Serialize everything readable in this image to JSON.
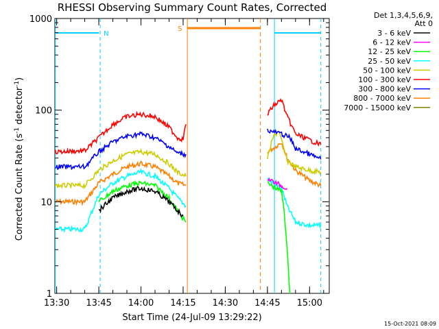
{
  "chart_data": {
    "type": "line",
    "title": "RHESSI Observing Summary Count Rates, Corrected",
    "xlabel": "Start Time (24-Jul-09 13:29:22)",
    "ylabel": "Corrected Count Rate (s",
    "ylabel_sup1": "-1",
    "ylabel_mid": " detector",
    "ylabel_sup2": "-1",
    "ylabel_end": ")",
    "y_scale": "log",
    "ylim": [
      1,
      1000
    ],
    "xlim": [
      "13:29:22",
      "15:07:00"
    ],
    "x_ticks": [
      "13:30",
      "13:45",
      "14:00",
      "14:15",
      "14:30",
      "14:45",
      "15:00"
    ],
    "y_ticks": [
      "1",
      "10",
      "100",
      "1000"
    ],
    "legend_header": [
      "Det 1,3,4,5,6,9,",
      "Att 0"
    ],
    "legend_position": "right",
    "series": [
      {
        "name": "3 - 6 keV",
        "color": "#000000",
        "segments": [
          {
            "x": [
              "13:45",
              "13:50",
              "13:55",
              "14:00",
              "14:05",
              "14:10",
              "14:13",
              "14:15"
            ],
            "y": [
              8,
              11,
              13,
              14,
              13,
              10,
              8,
              7
            ]
          }
        ]
      },
      {
        "name": "6 - 12 keV",
        "color": "#ff00ff",
        "segments": [
          {
            "x": [
              "14:45",
              "14:48",
              "14:50",
              "14:52"
            ],
            "y": [
              18,
              16,
              15,
              14
            ]
          }
        ]
      },
      {
        "name": "12 - 25 keV",
        "color": "#00ff00",
        "segments": [
          {
            "x": [
              "13:45",
              "13:50",
              "13:55",
              "14:00",
              "14:05",
              "14:10",
              "14:13",
              "14:16"
            ],
            "y": [
              10,
              13,
              15,
              16,
              15,
              11,
              8,
              6
            ]
          },
          {
            "x": [
              "14:45",
              "14:48",
              "14:50",
              "14:51",
              "14:52",
              "14:53"
            ],
            "y": [
              16,
              14,
              13,
              8,
              3,
              1
            ]
          }
        ]
      },
      {
        "name": "25 - 50 keV",
        "color": "#00ffff",
        "segments": [
          {
            "x": [
              "13:29:30",
              "13:40",
              "13:45",
              "13:50",
              "13:55",
              "14:00",
              "14:05",
              "14:10",
              "14:13",
              "14:16"
            ],
            "y": [
              5,
              5,
              12,
              16,
              19,
              21,
              19,
              14,
              11,
              9
            ]
          },
          {
            "x": [
              "14:45",
              "14:47",
              "14:50",
              "14:52",
              "14:55",
              "15:00",
              "15:04"
            ],
            "y": [
              18,
              16,
              14,
              9,
              6,
              5.5,
              5.5
            ]
          }
        ]
      },
      {
        "name": "50 - 100 keV",
        "color": "#cccc00",
        "segments": [
          {
            "x": [
              "13:29:30",
              "13:40",
              "13:45",
              "13:50",
              "13:55",
              "14:00",
              "14:05",
              "14:10",
              "14:13",
              "14:16"
            ],
            "y": [
              15,
              15,
              22,
              28,
              33,
              35,
              33,
              26,
              21,
              19
            ]
          },
          {
            "x": [
              "14:45",
              "14:47",
              "14:49",
              "14:52",
              "14:55",
              "15:00",
              "15:04"
            ],
            "y": [
              30,
              50,
              60,
              28,
              24,
              22,
              21
            ]
          }
        ]
      },
      {
        "name": "100 - 300 keV",
        "color": "#ff0000",
        "segments": [
          {
            "x": [
              "13:29:30",
              "13:40",
              "13:45",
              "13:50",
              "13:55",
              "14:00",
              "14:05",
              "14:10",
              "14:13",
              "14:15",
              "14:16"
            ],
            "y": [
              35,
              36,
              50,
              70,
              85,
              90,
              85,
              65,
              50,
              48,
              70
            ]
          },
          {
            "x": [
              "14:45",
              "14:47",
              "14:50",
              "14:52",
              "14:55",
              "15:00",
              "15:04"
            ],
            "y": [
              90,
              110,
              130,
              85,
              55,
              47,
              42
            ]
          }
        ]
      },
      {
        "name": "300 - 800 keV",
        "color": "#0000ff",
        "segments": [
          {
            "x": [
              "13:29:30",
              "13:40",
              "13:45",
              "13:50",
              "13:55",
              "14:00",
              "14:05",
              "14:10",
              "14:13",
              "14:16"
            ],
            "y": [
              24,
              24,
              35,
              45,
              52,
              55,
              50,
              40,
              34,
              33
            ]
          },
          {
            "x": [
              "14:45",
              "14:47",
              "14:50",
              "14:53",
              "14:55",
              "15:00",
              "15:04"
            ],
            "y": [
              60,
              58,
              55,
              50,
              38,
              33,
              29
            ]
          }
        ]
      },
      {
        "name": "800 - 7000 keV",
        "color": "#ff8000",
        "segments": [
          {
            "x": [
              "13:29:30",
              "13:40",
              "13:45",
              "13:50",
              "13:55",
              "14:00",
              "14:05",
              "14:10",
              "14:13",
              "14:16"
            ],
            "y": [
              10,
              10,
              16,
              20,
              24,
              26,
              24,
              19,
              16,
              15
            ]
          },
          {
            "x": [
              "14:45",
              "14:48",
              "14:50",
              "14:52",
              "14:55",
              "15:00",
              "15:04"
            ],
            "y": [
              35,
              40,
              45,
              30,
              22,
              17,
              15
            ]
          }
        ]
      },
      {
        "name": "7000 - 15000 keV",
        "color": "#808000",
        "segments": []
      }
    ],
    "annotations": [
      {
        "label": "N",
        "color": "#00d0ff",
        "x": [
          "13:29:30",
          "13:45:30",
          "14:47:30",
          "15:04:00"
        ]
      },
      {
        "label": "S",
        "color": "#ff8000",
        "x": [
          "14:16:30",
          "14:42:30"
        ]
      }
    ],
    "footer_date": "15-Oct-2021 08:09"
  }
}
